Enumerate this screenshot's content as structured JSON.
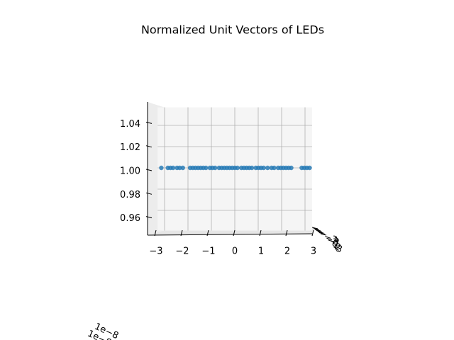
{
  "chart_data": {
    "type": "scatter3d",
    "title": "Normalized Unit Vectors of LEDs",
    "x": [
      -2.8,
      -2.55,
      -2.45,
      -2.35,
      -2.2,
      -2.1,
      -1.98,
      -1.7,
      -1.6,
      -1.5,
      -1.4,
      -1.3,
      -1.2,
      -1.1,
      -0.95,
      -0.85,
      -0.75,
      -0.6,
      -0.5,
      -0.4,
      -0.3,
      -0.2,
      -0.1,
      0.0,
      0.1,
      0.25,
      0.35,
      0.45,
      0.55,
      0.65,
      0.8,
      0.9,
      1.0,
      1.1,
      1.25,
      1.4,
      1.5,
      1.65,
      1.75,
      1.85,
      1.95,
      2.05,
      2.15,
      2.55,
      2.65,
      2.75,
      2.85
    ],
    "values": [
      1,
      1,
      1,
      1,
      1,
      1,
      1,
      1,
      1,
      1,
      1,
      1,
      1,
      1,
      1,
      1,
      1,
      1,
      1,
      1,
      1,
      1,
      1,
      1,
      1,
      1,
      1,
      1,
      1,
      1,
      1,
      1,
      1,
      1,
      1,
      1,
      1,
      1,
      1,
      1,
      1,
      1,
      1,
      1,
      1,
      1,
      1
    ],
    "color": "#1f77b4",
    "xlim": [
      -3.3,
      3.3
    ],
    "xticks": [
      {
        "value": -3,
        "label": "−3"
      },
      {
        "value": -2,
        "label": "−2"
      },
      {
        "value": -1,
        "label": "−1"
      },
      0,
      1,
      2,
      3
    ],
    "ylim": [
      0.941,
      1.057
    ],
    "yticks": [
      0.96,
      0.98,
      {
        "value": 1.0,
        "label": "1.00"
      },
      1.02,
      1.04
    ],
    "zticks": [
      {
        "value": -3,
        "label": "−3"
      },
      {
        "value": -2,
        "label": "−2"
      },
      {
        "value": -1,
        "label": "−1"
      },
      0,
      1,
      2,
      3
    ],
    "annotations": [
      "1e−8",
      "1e−8"
    ],
    "grid": true
  }
}
